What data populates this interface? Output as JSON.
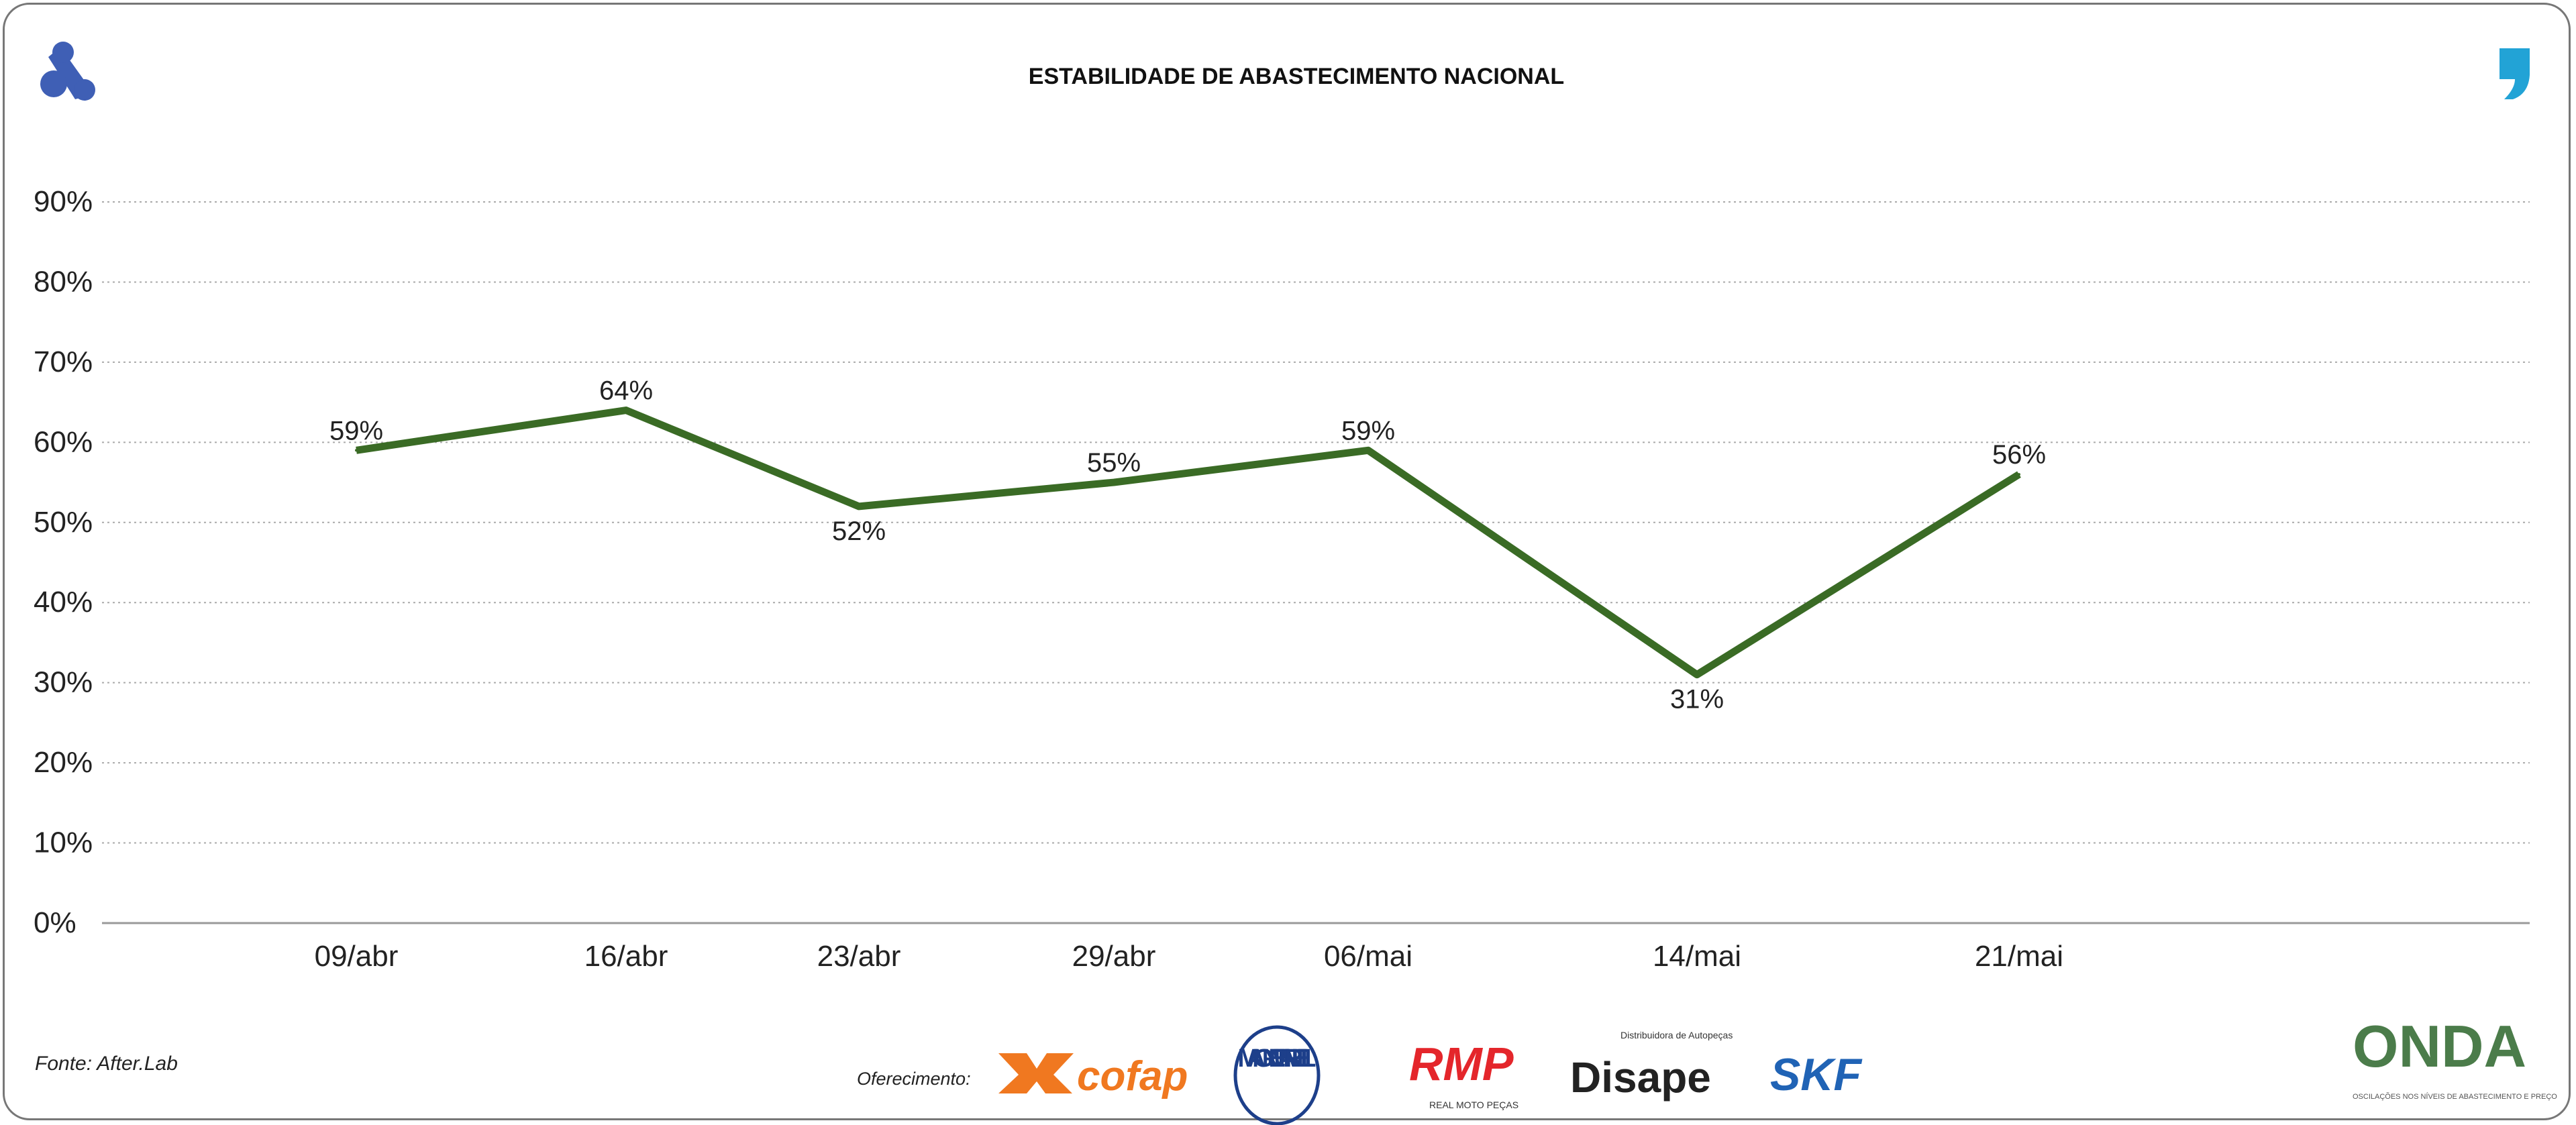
{
  "chart_data": {
    "type": "line",
    "title": "ESTABILIDADE DE ABASTECIMENTO NACIONAL",
    "categories": [
      "09/abr",
      "16/abr",
      "23/abr",
      "29/abr",
      "06/mai",
      "14/mai",
      "21/mai"
    ],
    "series": [
      {
        "name": "Estabilidade",
        "values": [
          59,
          64,
          52,
          55,
          59,
          31,
          56
        ],
        "color": "#3a6b25"
      }
    ],
    "data_labels": [
      "59%",
      "64%",
      "52%",
      "55%",
      "59%",
      "31%",
      "56%"
    ],
    "yticks": [
      "0%",
      "10%",
      "20%",
      "30%",
      "40%",
      "50%",
      "60%",
      "70%",
      "80%",
      "90%"
    ],
    "ylim": [
      0,
      90
    ],
    "xlabel": "",
    "ylabel": "",
    "grid": "horizontal dotted",
    "legend": "none"
  },
  "footer": {
    "source": "Fonte: After.Lab",
    "sponsor_label": "Oferecimento:",
    "sponsors": [
      "cofap",
      "MAGNETI MARELLI",
      "RMP",
      "Disape",
      "SKF"
    ],
    "rmp_sub": "REAL MOTO PEÇAS",
    "disape_sub": "Distribuidora de Autopeças",
    "brand": "ONDA",
    "brand_sub": "OSCILAÇÕES NOS NÍVEIS DE ABASTECIMENTO E PREÇO"
  },
  "colors": {
    "line": "#3a6b25",
    "logo_left": "#3f5fb5",
    "logo_right": "#22a3d6"
  }
}
